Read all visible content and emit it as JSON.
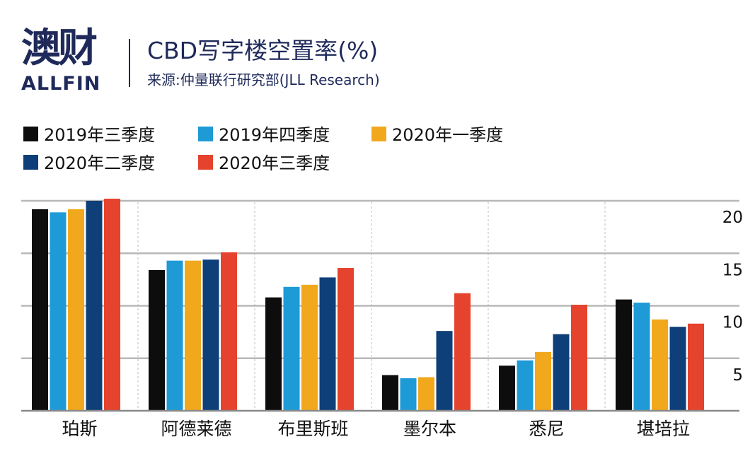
{
  "brand": {
    "name_cn": "澳财",
    "name_en": "ALLFIN"
  },
  "header": {
    "title": "CBD写字楼空置率(%)",
    "subtitle": "来源:仲量联行研究部(JLL Research)"
  },
  "chart_data": {
    "type": "bar",
    "title": "CBD写字楼空置率(%)",
    "categories": [
      "珀斯",
      "阿德莱德",
      "布里斯班",
      "墨尔本",
      "悉尼",
      "堪培拉"
    ],
    "series": [
      {
        "name": "2019年三季度",
        "color": "#0d0d0d",
        "values": [
          19.2,
          13.4,
          10.8,
          3.4,
          4.3,
          10.6
        ]
      },
      {
        "name": "2019年四季度",
        "color": "#1e9ad6",
        "values": [
          18.9,
          14.3,
          11.8,
          3.1,
          4.8,
          10.3
        ]
      },
      {
        "name": "2020年一季度",
        "color": "#f2a81d",
        "values": [
          19.2,
          14.3,
          12.0,
          3.2,
          5.6,
          8.7
        ]
      },
      {
        "name": "2020年二季度",
        "color": "#0f3f78",
        "values": [
          20.0,
          14.4,
          12.7,
          7.6,
          7.3,
          8.0
        ]
      },
      {
        "name": "2020年三季度",
        "color": "#e5432d",
        "values": [
          20.2,
          15.1,
          13.6,
          11.2,
          10.1,
          8.3
        ]
      }
    ],
    "yticks": [
      5,
      10,
      15,
      20
    ],
    "ylim": [
      0,
      20
    ],
    "ylabel": "",
    "xlabel": "",
    "axis_side": "right",
    "grid": true,
    "legend": "top-left"
  }
}
